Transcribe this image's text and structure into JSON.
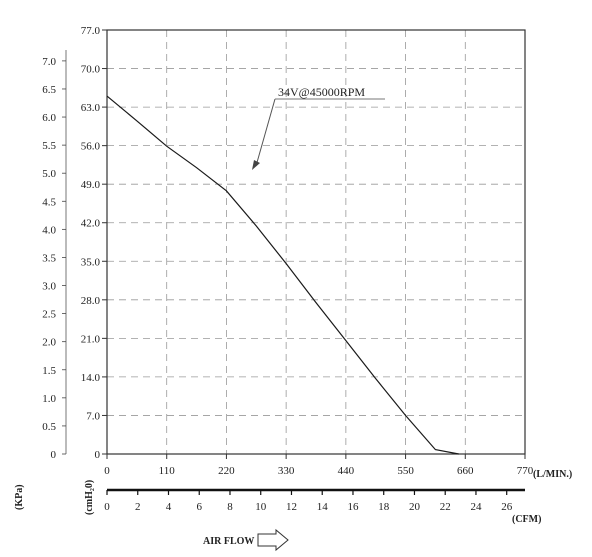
{
  "chart_data": {
    "type": "line",
    "title": "",
    "x_primary": {
      "unit": "(L/MIN.)",
      "range": [
        0,
        770
      ],
      "ticks": [
        "0",
        "110",
        "220",
        "330",
        "440",
        "550",
        "660",
        "770"
      ]
    },
    "x_secondary": {
      "unit": "(CFM)",
      "range": [
        0,
        27.19
      ],
      "ticks": [
        "0",
        "2",
        "4",
        "6",
        "8",
        "10",
        "12",
        "14",
        "16",
        "18",
        "20",
        "22",
        "24",
        "26"
      ]
    },
    "y_primary": {
      "unit": "(cmH₂0)",
      "range": [
        0,
        77
      ],
      "ticks": [
        "0",
        "7.0",
        "14.0",
        "21.0",
        "28.0",
        "35.0",
        "42.0",
        "49.0",
        "56.0",
        "63.0",
        "70.0",
        "77.0"
      ]
    },
    "y_secondary": {
      "unit": "(KPa)",
      "range": [
        0,
        7.55
      ],
      "ticks": [
        "0",
        "0.5",
        "1.0",
        "1.5",
        "2.0",
        "2.5",
        "3.0",
        "3.5",
        "4.0",
        "4.5",
        "5.0",
        "5.5",
        "6.0",
        "6.5",
        "7.0"
      ]
    },
    "grid": true,
    "series": [
      {
        "name": "34V@45000RPM",
        "x": [
          0,
          55,
          110,
          165,
          220,
          275,
          330,
          385,
          440,
          495,
          550,
          605,
          648
        ],
        "y": [
          65.0,
          60.5,
          55.9,
          52.0,
          47.8,
          41.4,
          34.6,
          27.5,
          20.6,
          13.7,
          7.0,
          0.8,
          0
        ]
      }
    ],
    "annotation": "34V@45000RPM",
    "footer": "AIR FLOW"
  }
}
